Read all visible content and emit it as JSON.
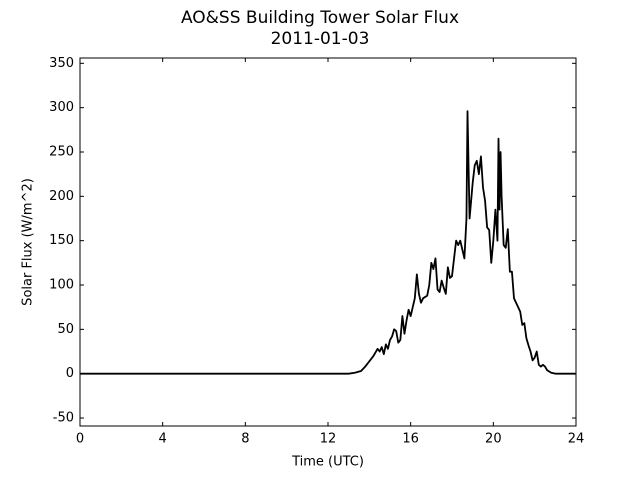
{
  "chart_data": {
    "type": "line",
    "title": "AO&SS Building Tower Solar Flux",
    "subtitle": "2011-01-03",
    "xlabel": "Time (UTC)",
    "ylabel": "Solar Flux (W/m^2)",
    "xlim": [
      0,
      24
    ],
    "xticks": [
      0,
      4,
      8,
      12,
      16,
      20,
      24
    ],
    "ylim": [
      -59,
      356
    ],
    "yticks": [
      -50,
      0,
      50,
      100,
      150,
      200,
      250,
      300,
      350
    ],
    "series": [
      {
        "name": "Solar Flux",
        "color": "#000000",
        "x": [
          0,
          13,
          13.3,
          13.6,
          13.8,
          14.0,
          14.2,
          14.4,
          14.5,
          14.6,
          14.7,
          14.8,
          14.9,
          15.0,
          15.1,
          15.2,
          15.3,
          15.4,
          15.5,
          15.6,
          15.7,
          15.8,
          15.9,
          16.0,
          16.1,
          16.2,
          16.3,
          16.4,
          16.5,
          16.6,
          16.8,
          16.9,
          17.0,
          17.1,
          17.2,
          17.3,
          17.4,
          17.5,
          17.6,
          17.7,
          17.8,
          17.9,
          18.0,
          18.1,
          18.2,
          18.3,
          18.4,
          18.5,
          18.6,
          18.7,
          18.75,
          18.85,
          19.0,
          19.1,
          19.2,
          19.3,
          19.4,
          19.5,
          19.6,
          19.7,
          19.8,
          19.9,
          20.0,
          20.1,
          20.2,
          20.25,
          20.3,
          20.35,
          20.4,
          20.5,
          20.6,
          20.7,
          20.8,
          20.9,
          21.0,
          21.1,
          21.2,
          21.3,
          21.4,
          21.5,
          21.6,
          21.7,
          21.8,
          21.9,
          22.0,
          22.1,
          22.2,
          22.3,
          22.4,
          22.5,
          22.6,
          22.8,
          23.0,
          24
        ],
        "values": [
          0,
          0,
          1,
          3,
          8,
          14,
          20,
          28,
          25,
          30,
          22,
          33,
          28,
          38,
          42,
          50,
          48,
          35,
          38,
          65,
          45,
          60,
          72,
          65,
          75,
          85,
          112,
          90,
          80,
          85,
          88,
          100,
          125,
          118,
          130,
          95,
          92,
          105,
          97,
          90,
          120,
          108,
          110,
          130,
          150,
          145,
          150,
          140,
          130,
          175,
          296,
          175,
          215,
          235,
          240,
          225,
          245,
          210,
          195,
          165,
          162,
          125,
          150,
          185,
          150,
          265,
          185,
          250,
          200,
          145,
          142,
          163,
          115,
          115,
          85,
          80,
          75,
          70,
          55,
          57,
          40,
          32,
          25,
          15,
          18,
          25,
          10,
          8,
          10,
          8,
          4,
          1,
          0,
          0
        ]
      }
    ]
  }
}
